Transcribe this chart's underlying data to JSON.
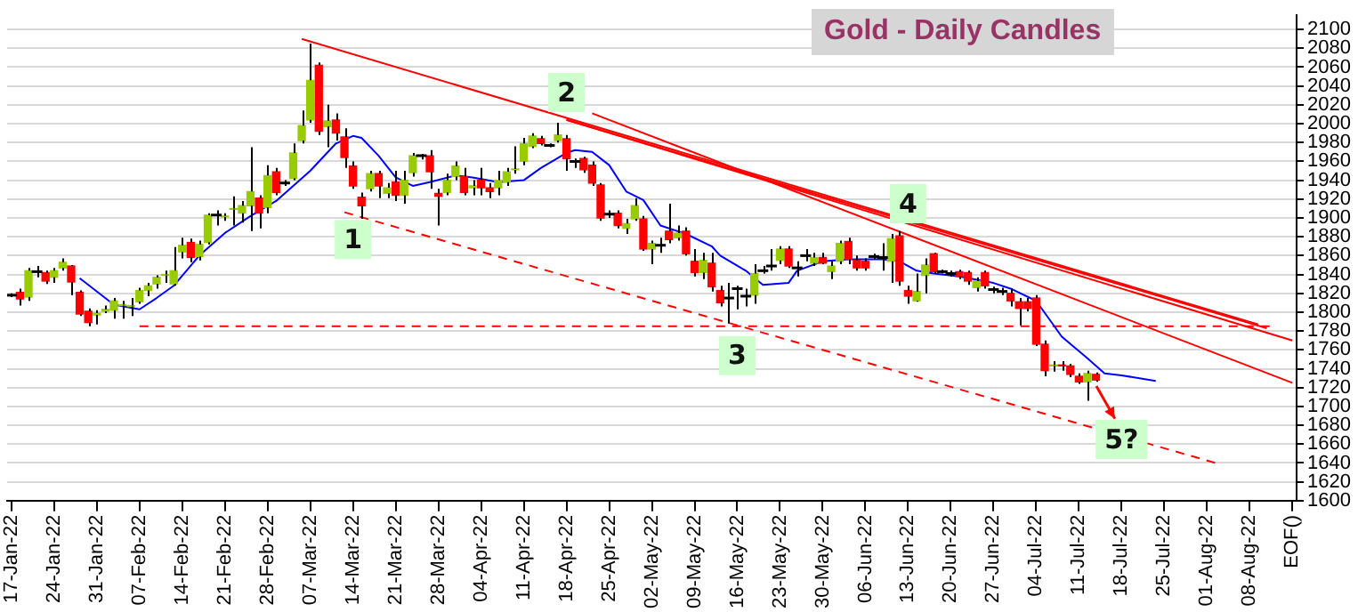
{
  "chart_data": {
    "type": "candlestick",
    "title": "Gold - Daily Candles",
    "categories": [
      "17-Jan-22",
      null,
      null,
      null,
      null,
      "24-Jan-22",
      null,
      null,
      null,
      null,
      "31-Jan-22",
      null,
      null,
      null,
      null,
      "07-Feb-22",
      null,
      null,
      null,
      null,
      "14-Feb-22",
      null,
      null,
      null,
      null,
      "21-Feb-22",
      null,
      null,
      null,
      null,
      "28-Feb-22",
      null,
      null,
      null,
      null,
      "07-Mar-22",
      null,
      null,
      null,
      null,
      "14-Mar-22",
      null,
      null,
      null,
      null,
      "21-Mar-22",
      null,
      null,
      null,
      null,
      "28-Mar-22",
      null,
      null,
      null,
      null,
      "04-Apr-22",
      null,
      null,
      null,
      null,
      "11-Apr-22",
      null,
      null,
      null,
      null,
      "18-Apr-22",
      null,
      null,
      null,
      null,
      "25-Apr-22",
      null,
      null,
      null,
      null,
      "02-May-22",
      null,
      null,
      null,
      null,
      "09-May-22",
      null,
      null,
      null,
      null,
      "16-May-22",
      null,
      null,
      null,
      null,
      "23-May-22",
      null,
      null,
      null,
      null,
      "30-May-22",
      null,
      null,
      null,
      null,
      "06-Jun-22",
      null,
      null,
      null,
      null,
      "13-Jun-22",
      null,
      null,
      null,
      null,
      "20-Jun-22",
      null,
      null,
      null,
      null,
      "27-Jun-22",
      null,
      null,
      null,
      null,
      "04-Jul-22",
      null,
      null,
      null,
      null,
      "11-Jul-22",
      null,
      null,
      null,
      null,
      "18-Jul-22",
      null,
      null,
      null,
      null,
      "25-Jul-22",
      null,
      null,
      null,
      null,
      "01-Aug-22",
      null,
      null,
      null,
      null,
      "08-Aug-22",
      null,
      null,
      null,
      null,
      "EOF()"
    ],
    "ohlc": [
      [
        1818,
        1820,
        1816,
        1818
      ],
      [
        1821,
        1825,
        1807,
        1814
      ],
      [
        1816,
        1847,
        1812,
        1844
      ],
      [
        1843,
        1849,
        1837,
        1843
      ],
      [
        1842,
        1844,
        1830,
        1833
      ],
      [
        1837,
        1847,
        1831,
        1844
      ],
      [
        1847,
        1857,
        1844,
        1853
      ],
      [
        1849,
        1850,
        1818,
        1832
      ],
      [
        1821,
        1823,
        1796,
        1798
      ],
      [
        1801,
        1804,
        1785,
        1789
      ],
      [
        1797,
        1802,
        1787,
        1799
      ],
      [
        1801,
        1807,
        1799,
        1803
      ],
      [
        1802,
        1815,
        1793,
        1812
      ],
      [
        1807,
        1812,
        1793,
        1808
      ],
      [
        1806,
        1815,
        1796,
        1807
      ],
      [
        1811,
        1826,
        1809,
        1823
      ],
      [
        1823,
        1831,
        1817,
        1828
      ],
      [
        1830,
        1839,
        1825,
        1837
      ],
      [
        1839,
        1844,
        1831,
        1840
      ],
      [
        1830,
        1869,
        1828,
        1844
      ],
      [
        1864,
        1879,
        1857,
        1871
      ],
      [
        1874,
        1878,
        1853,
        1858
      ],
      [
        1859,
        1876,
        1855,
        1872
      ],
      [
        1874,
        1905,
        1872,
        1903
      ],
      [
        1903,
        1908,
        1892,
        1903
      ],
      [
        1901,
        1905,
        1897,
        1902
      ],
      [
        1909,
        1923,
        1892,
        1910
      ],
      [
        1905,
        1918,
        1895,
        1913
      ],
      [
        1913,
        1975,
        1886,
        1928
      ],
      [
        1921,
        1924,
        1889,
        1905
      ],
      [
        1911,
        1956,
        1905,
        1945
      ],
      [
        1949,
        1953,
        1924,
        1927
      ],
      [
        1937,
        1940,
        1934,
        1937
      ],
      [
        1942,
        1979,
        1940,
        1969
      ],
      [
        1982,
        2014,
        1979,
        1998
      ],
      [
        2004,
        2085,
        2001,
        2046
      ],
      [
        2062,
        2065,
        1988,
        1992
      ],
      [
        1997,
        2020,
        1975,
        2003
      ],
      [
        2004,
        2011,
        1982,
        1990
      ],
      [
        1986,
        1995,
        1953,
        1964
      ],
      [
        1955,
        1960,
        1931,
        1934
      ],
      [
        1922,
        1927,
        1899,
        1913
      ],
      [
        1931,
        1950,
        1928,
        1947
      ],
      [
        1947,
        1950,
        1921,
        1934
      ],
      [
        1926,
        1937,
        1921,
        1932
      ],
      [
        1938,
        1950,
        1918,
        1924
      ],
      [
        1924,
        1950,
        1915,
        1940
      ],
      [
        1948,
        1969,
        1944,
        1966
      ],
      [
        1966,
        1968,
        1962,
        1966
      ],
      [
        1966,
        1972,
        1931,
        1949
      ],
      [
        1926,
        1931,
        1892,
        1923
      ],
      [
        1927,
        1947,
        1924,
        1940
      ],
      [
        1944,
        1960,
        1940,
        1955
      ],
      [
        1944,
        1953,
        1924,
        1927
      ],
      [
        1932,
        1940,
        1924,
        1934
      ],
      [
        1940,
        1953,
        1924,
        1932
      ],
      [
        1932,
        1937,
        1921,
        1928
      ],
      [
        1932,
        1950,
        1924,
        1940
      ],
      [
        1938,
        1953,
        1934,
        1949
      ],
      [
        1951,
        1976,
        1947,
        1952
      ],
      [
        1960,
        1985,
        1956,
        1979
      ],
      [
        1976,
        1990,
        1974,
        1987
      ],
      [
        1984,
        1987,
        1977,
        1979
      ],
      [
        1977,
        1979,
        1975,
        1977
      ],
      [
        1982,
        2001,
        1980,
        1988
      ],
      [
        1984,
        1988,
        1950,
        1963
      ],
      [
        1960,
        1963,
        1953,
        1960
      ],
      [
        1963,
        1965,
        1948,
        1951
      ],
      [
        1956,
        1960,
        1934,
        1937
      ],
      [
        1935,
        1937,
        1897,
        1900
      ],
      [
        1904,
        1908,
        1900,
        1904
      ],
      [
        1905,
        1908,
        1889,
        1892
      ],
      [
        1889,
        1899,
        1883,
        1894
      ],
      [
        1899,
        1921,
        1897,
        1913
      ],
      [
        1899,
        1902,
        1865,
        1867
      ],
      [
        1867,
        1876,
        1851,
        1873
      ],
      [
        1871,
        1879,
        1863,
        1871
      ],
      [
        1886,
        1915,
        1873,
        1877
      ],
      [
        1879,
        1892,
        1876,
        1884
      ],
      [
        1886,
        1890,
        1860,
        1862
      ],
      [
        1854,
        1867,
        1838,
        1842
      ],
      [
        1842,
        1863,
        1835,
        1855
      ],
      [
        1852,
        1863,
        1822,
        1827
      ],
      [
        1823,
        1828,
        1806,
        1810
      ],
      [
        1815,
        1831,
        1788,
        1815
      ],
      [
        1825,
        1828,
        1803,
        1825
      ],
      [
        1817,
        1825,
        1806,
        1817
      ],
      [
        1818,
        1851,
        1809,
        1841
      ],
      [
        1844,
        1849,
        1841,
        1844
      ],
      [
        1849,
        1867,
        1844,
        1849
      ],
      [
        1855,
        1870,
        1851,
        1867
      ],
      [
        1867,
        1870,
        1847,
        1849
      ],
      [
        1847,
        1854,
        1838,
        1847
      ],
      [
        1860,
        1867,
        1854,
        1860
      ],
      [
        1852,
        1863,
        1849,
        1858
      ],
      [
        1858,
        1863,
        1851,
        1852
      ],
      [
        1843,
        1854,
        1835,
        1849
      ],
      [
        1854,
        1876,
        1851,
        1873
      ],
      [
        1875,
        1879,
        1851,
        1856
      ],
      [
        1855,
        1860,
        1844,
        1847
      ],
      [
        1854,
        1857,
        1844,
        1847
      ],
      [
        1859,
        1862,
        1856,
        1859
      ],
      [
        1858,
        1873,
        1844,
        1858
      ],
      [
        1854,
        1883,
        1831,
        1878
      ],
      [
        1881,
        1886,
        1828,
        1833
      ],
      [
        1823,
        1828,
        1809,
        1817
      ],
      [
        1812,
        1841,
        1811,
        1822
      ],
      [
        1839,
        1857,
        1820,
        1850
      ],
      [
        1862,
        1863,
        1841,
        1843
      ],
      [
        1843,
        1845,
        1841,
        1843
      ],
      [
        1841,
        1844,
        1838,
        1841
      ],
      [
        1843,
        1845,
        1835,
        1838
      ],
      [
        1842,
        1844,
        1829,
        1833
      ],
      [
        1826,
        1837,
        1822,
        1833
      ],
      [
        1842,
        1844,
        1825,
        1828
      ],
      [
        1824,
        1827,
        1820,
        1824
      ],
      [
        1822,
        1826,
        1818,
        1822
      ],
      [
        1820,
        1825,
        1806,
        1812
      ],
      [
        1811,
        1815,
        1786,
        1804
      ],
      [
        1811,
        1815,
        1801,
        1804
      ],
      [
        1815,
        1818,
        1764,
        1766
      ],
      [
        1766,
        1770,
        1732,
        1738
      ],
      [
        1743,
        1748,
        1737,
        1744
      ],
      [
        1744,
        1748,
        1738,
        1743
      ],
      [
        1743,
        1745,
        1731,
        1734
      ],
      [
        1732,
        1735,
        1724,
        1726
      ],
      [
        1726,
        1738,
        1706,
        1735
      ],
      [
        1734,
        1736,
        1726,
        1728
      ],
      null,
      null,
      null,
      null,
      null,
      null,
      null,
      null,
      null,
      null,
      null,
      null,
      null,
      null,
      null,
      null,
      null,
      null,
      null,
      null,
      null,
      null,
      null
    ],
    "series": [
      {
        "type": "line",
        "color": "#0000ff",
        "line_style": "solid",
        "values": [
          null,
          null,
          null,
          null,
          null,
          null,
          null,
          null,
          1836,
          null,
          null,
          null,
          1808,
          null,
          null,
          1803,
          null,
          1815,
          null,
          1828,
          null,
          null,
          1860,
          null,
          null,
          1884,
          null,
          null,
          1902,
          null,
          null,
          1918,
          null,
          null,
          null,
          1950,
          null,
          null,
          1979,
          null,
          1987,
          1985,
          null,
          1966,
          null,
          1943,
          null,
          1934,
          null,
          1938,
          null,
          null,
          1945,
          null,
          1943,
          null,
          null,
          1938,
          null,
          null,
          1940,
          null,
          1953,
          null,
          null,
          1969,
          1972,
          null,
          1970,
          null,
          1956,
          null,
          1928,
          null,
          1919,
          null,
          1892,
          null,
          null,
          1883,
          null,
          null,
          1870,
          1860,
          null,
          null,
          1844,
          null,
          1829,
          null,
          null,
          1831,
          1844,
          null,
          null,
          1854,
          null,
          null,
          1856,
          null,
          null,
          null,
          1856,
          null,
          1854,
          null,
          1844,
          null,
          1841,
          null,
          null,
          1838,
          null,
          null,
          null,
          1831,
          null,
          1825,
          null,
          null,
          1812,
          null,
          null,
          1774,
          null,
          null,
          1751,
          null,
          1735,
          null,
          1733,
          null,
          null,
          null,
          1727,
          null,
          null,
          null,
          null,
          null,
          null,
          null,
          null,
          null,
          null,
          null,
          null,
          null,
          null,
          null,
          null
        ]
      },
      {
        "type": "line",
        "color": "#ff0000",
        "line_style": "solid",
        "values": [
          null,
          null,
          null,
          null,
          null,
          null,
          null,
          null,
          null,
          null,
          null,
          null,
          null,
          null,
          null,
          null,
          null,
          null,
          null,
          null,
          null,
          null,
          null,
          null,
          null,
          null,
          null,
          null,
          null,
          null,
          null,
          null,
          null,
          null,
          2090,
          null,
          null,
          null,
          null,
          null,
          null,
          null,
          null,
          null,
          null,
          null,
          null,
          null,
          null,
          null,
          null,
          null,
          null,
          null,
          null,
          null,
          null,
          null,
          null,
          null,
          null,
          null,
          null,
          null,
          null,
          null,
          null,
          null,
          null,
          null,
          null,
          null,
          null,
          null,
          null,
          null,
          null,
          null,
          null,
          null,
          null,
          null,
          null,
          null,
          null,
          null,
          null,
          null,
          null,
          null,
          null,
          null,
          null,
          null,
          null,
          null,
          null,
          null,
          null,
          null,
          null,
          null,
          null,
          null,
          null,
          null,
          null,
          null,
          null,
          null,
          null,
          null,
          null,
          null,
          null,
          null,
          null,
          null,
          null,
          null,
          null,
          null,
          null,
          null,
          null,
          null,
          null,
          null,
          null,
          null,
          null,
          null,
          null,
          null,
          null,
          null,
          null,
          null,
          null,
          null,
          null,
          null,
          null,
          null,
          null,
          null,
          1787,
          null,
          null,
          null,
          null
        ]
      },
      {
        "type": "line",
        "color": "#ff0000",
        "line_style": "solid",
        "values": [
          null,
          null,
          null,
          null,
          null,
          null,
          null,
          null,
          null,
          null,
          null,
          null,
          null,
          null,
          null,
          null,
          null,
          null,
          null,
          null,
          null,
          null,
          null,
          null,
          null,
          null,
          null,
          null,
          null,
          null,
          null,
          null,
          null,
          null,
          null,
          null,
          null,
          null,
          null,
          null,
          null,
          null,
          null,
          null,
          null,
          null,
          null,
          null,
          null,
          null,
          null,
          null,
          null,
          null,
          null,
          null,
          null,
          null,
          null,
          null,
          null,
          null,
          null,
          null,
          null,
          2004,
          null,
          null,
          null,
          null,
          null,
          null,
          null,
          null,
          null,
          null,
          null,
          null,
          null,
          null,
          null,
          null,
          null,
          null,
          null,
          null,
          null,
          null,
          null,
          null,
          null,
          null,
          null,
          null,
          null,
          null,
          null,
          null,
          null,
          null,
          null,
          null,
          null,
          null,
          null,
          null,
          null,
          null,
          null,
          null,
          null,
          null,
          null,
          null,
          null,
          null,
          null,
          null,
          null,
          null,
          null,
          null,
          null,
          null,
          null,
          null,
          null,
          null,
          null,
          null,
          null,
          null,
          null,
          null,
          null,
          null,
          null,
          null,
          null,
          null,
          null,
          null,
          null,
          null,
          null,
          null,
          null,
          1783,
          null,
          null,
          null
        ]
      },
      {
        "type": "line",
        "color": "#ff0000",
        "line_style": "solid",
        "values": [
          null,
          null,
          null,
          null,
          null,
          null,
          null,
          null,
          null,
          null,
          null,
          null,
          null,
          null,
          null,
          null,
          null,
          null,
          null,
          null,
          null,
          null,
          null,
          null,
          null,
          null,
          null,
          null,
          null,
          null,
          null,
          null,
          null,
          null,
          null,
          null,
          null,
          null,
          null,
          null,
          null,
          null,
          null,
          null,
          null,
          null,
          null,
          null,
          null,
          null,
          null,
          null,
          null,
          null,
          null,
          null,
          null,
          null,
          null,
          null,
          null,
          null,
          null,
          null,
          null,
          2004,
          null,
          null,
          null,
          null,
          null,
          null,
          null,
          null,
          null,
          null,
          null,
          null,
          null,
          null,
          null,
          null,
          null,
          null,
          null,
          null,
          null,
          null,
          null,
          null,
          null,
          null,
          null,
          null,
          null,
          null,
          null,
          null,
          null,
          null,
          null,
          null,
          null,
          null,
          null,
          null,
          null,
          null,
          null,
          null,
          null,
          null,
          null,
          null,
          null,
          null,
          null,
          null,
          null,
          null,
          null,
          null,
          null,
          null,
          null,
          null,
          null,
          null,
          null,
          null,
          null,
          null,
          null,
          null,
          null,
          null,
          null,
          null,
          null,
          null,
          null,
          null,
          null,
          null,
          null,
          null,
          null,
          null,
          null,
          null,
          1770
        ]
      },
      {
        "type": "line",
        "color": "#ff0000",
        "line_style": "solid",
        "values": [
          null,
          null,
          null,
          null,
          null,
          null,
          null,
          null,
          null,
          null,
          null,
          null,
          null,
          null,
          null,
          null,
          null,
          null,
          null,
          null,
          null,
          null,
          null,
          null,
          null,
          null,
          null,
          null,
          null,
          null,
          null,
          null,
          null,
          null,
          null,
          null,
          null,
          null,
          null,
          null,
          null,
          null,
          null,
          null,
          null,
          null,
          null,
          null,
          null,
          null,
          null,
          null,
          null,
          null,
          null,
          null,
          null,
          null,
          null,
          null,
          null,
          null,
          null,
          null,
          null,
          null,
          null,
          null,
          2011,
          null,
          null,
          null,
          null,
          null,
          null,
          null,
          null,
          null,
          null,
          null,
          null,
          null,
          null,
          null,
          null,
          null,
          null,
          null,
          null,
          null,
          null,
          null,
          null,
          null,
          null,
          null,
          null,
          null,
          null,
          null,
          null,
          null,
          null,
          null,
          null,
          null,
          null,
          null,
          null,
          null,
          null,
          null,
          null,
          null,
          null,
          null,
          null,
          null,
          null,
          null,
          null,
          null,
          null,
          null,
          null,
          null,
          null,
          null,
          null,
          null,
          null,
          null,
          null,
          null,
          null,
          null,
          null,
          null,
          null,
          null,
          null,
          null,
          null,
          null,
          null,
          null,
          null,
          null,
          null,
          null,
          1725
        ]
      },
      {
        "type": "line",
        "color": "#ff0000",
        "line_style": "dashed",
        "values": [
          null,
          null,
          null,
          null,
          null,
          null,
          null,
          null,
          null,
          null,
          null,
          null,
          null,
          null,
          null,
          null,
          null,
          null,
          null,
          null,
          null,
          null,
          null,
          null,
          null,
          null,
          null,
          null,
          null,
          null,
          null,
          null,
          null,
          null,
          null,
          null,
          null,
          null,
          null,
          1906,
          null,
          null,
          null,
          null,
          null,
          null,
          null,
          null,
          null,
          null,
          null,
          null,
          null,
          null,
          null,
          null,
          null,
          null,
          null,
          null,
          null,
          null,
          null,
          null,
          null,
          null,
          null,
          null,
          null,
          null,
          null,
          null,
          null,
          null,
          null,
          null,
          null,
          null,
          null,
          null,
          null,
          null,
          null,
          null,
          null,
          null,
          null,
          null,
          null,
          null,
          null,
          null,
          null,
          null,
          null,
          null,
          null,
          null,
          null,
          null,
          null,
          null,
          null,
          null,
          null,
          null,
          null,
          null,
          null,
          null,
          null,
          null,
          null,
          null,
          null,
          null,
          null,
          null,
          null,
          null,
          null,
          null,
          null,
          null,
          null,
          null,
          null,
          null,
          null,
          null,
          null,
          null,
          null,
          null,
          null,
          null,
          null,
          null,
          null,
          null,
          null,
          1640,
          null,
          null,
          null,
          null,
          null,
          null,
          null,
          null,
          null
        ]
      },
      {
        "type": "line",
        "color": "#ff0000",
        "line_style": "dashed",
        "values": [
          null,
          null,
          null,
          null,
          null,
          null,
          null,
          null,
          null,
          null,
          null,
          null,
          null,
          null,
          null,
          1785,
          null,
          null,
          null,
          null,
          null,
          null,
          null,
          null,
          null,
          null,
          null,
          null,
          null,
          null,
          null,
          null,
          null,
          null,
          null,
          null,
          null,
          null,
          null,
          null,
          null,
          null,
          null,
          null,
          null,
          null,
          null,
          null,
          null,
          null,
          null,
          null,
          null,
          null,
          null,
          null,
          null,
          null,
          null,
          null,
          null,
          null,
          null,
          null,
          null,
          null,
          null,
          null,
          null,
          null,
          null,
          null,
          null,
          null,
          null,
          null,
          null,
          null,
          null,
          null,
          null,
          null,
          null,
          null,
          null,
          null,
          null,
          null,
          null,
          null,
          null,
          null,
          null,
          null,
          null,
          null,
          null,
          null,
          null,
          null,
          null,
          null,
          null,
          null,
          null,
          null,
          null,
          null,
          null,
          null,
          null,
          null,
          null,
          null,
          null,
          null,
          null,
          null,
          null,
          null,
          null,
          null,
          null,
          null,
          null,
          null,
          null,
          null,
          null,
          null,
          null,
          null,
          null,
          null,
          null,
          null,
          null,
          null,
          null,
          null,
          null,
          null,
          null,
          null,
          null,
          null,
          null,
          null,
          1785,
          null,
          null
        ]
      }
    ],
    "marker": "none",
    "ylim": [
      1600,
      2115
    ],
    "yticks": [
      1600,
      1620,
      1640,
      1660,
      1680,
      1700,
      1720,
      1740,
      1760,
      1780,
      1800,
      1820,
      1840,
      1860,
      1880,
      1900,
      1920,
      1940,
      1960,
      1980,
      2000,
      2020,
      2040,
      2060,
      2080,
      2100
    ],
    "grid": "y",
    "annotations": [
      {
        "text": "1",
        "x": "14-Mar-22",
        "y": 1877
      },
      {
        "text": "2",
        "x": "18-Apr-22",
        "y": 2033
      },
      {
        "text": "3",
        "x": "16-May-22",
        "y": 1754
      },
      {
        "text": "4",
        "x": "13-Jun-22",
        "y": 1915
      },
      {
        "text": "5?",
        "x": "18-Jul-22",
        "y": 1665
      }
    ]
  }
}
